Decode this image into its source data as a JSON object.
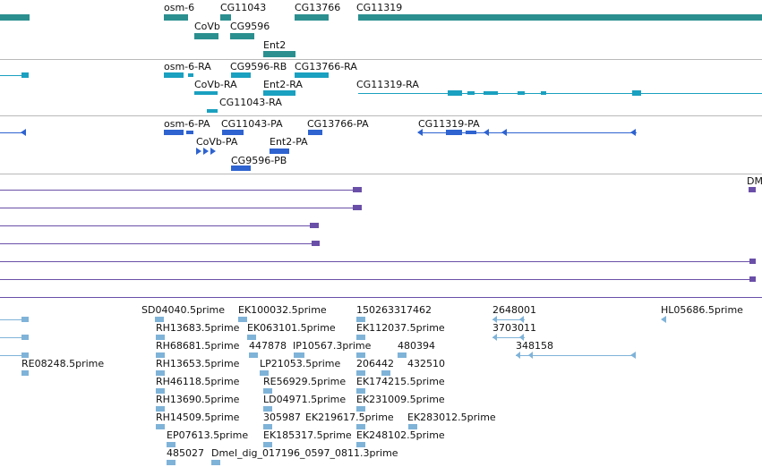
{
  "colors": {
    "gene": "#2b8f8f",
    "rna": "#1aa0c0",
    "protein": "#2e63d0",
    "purple": "#6a4fa8",
    "est": "#7fb3d8",
    "separator": "#b9b9b9"
  },
  "gene_track": {
    "labels": [
      "osm-6",
      "CG11043",
      "CG13766",
      "CG11319",
      "CoVb",
      "CG9596",
      "Ent2"
    ]
  },
  "rna_track": {
    "labels": [
      "osm-6-RA",
      "CG9596-RB",
      "CG13766-RA",
      "CoVb-RA",
      "Ent2-RA",
      "CG11319-RA",
      "CG11043-RA"
    ]
  },
  "protein_track": {
    "labels": [
      "osm-6-PA",
      "CG11043-PA",
      "CG13766-PA",
      "CG11319-PA",
      "CoVb-PA",
      "Ent2-PA",
      "CG9596-PB"
    ]
  },
  "purple_track": {
    "labels": [
      "DM"
    ]
  },
  "est_track": {
    "labels": [
      "SD04040.5prime",
      "EK100032.5prime",
      "150263317462",
      "2648001",
      "HL05686.5prime",
      "RH13683.5prime",
      "EK063101.5prime",
      "EK112037.5prime",
      "3703011",
      "RH68681.5prime",
      "447878",
      "IP10567.3prime",
      "480394",
      "348158",
      "RE08248.5prime",
      "RH13653.5prime",
      "LP21053.5prime",
      "206442",
      "432510",
      "RH46118.5prime",
      "RE56929.5prime",
      "EK174215.5prime",
      "RH13690.5prime",
      "LD04971.5prime",
      "EK231009.5prime",
      "RH14509.5prime",
      "305987",
      "EK219617.5prime",
      "EK283012.5prime",
      "EP07613.5prime",
      "EK185317.5prime",
      "EK248102.5prime",
      "485027",
      "Dmel_dig_017196_0597_0811.3prime"
    ]
  }
}
